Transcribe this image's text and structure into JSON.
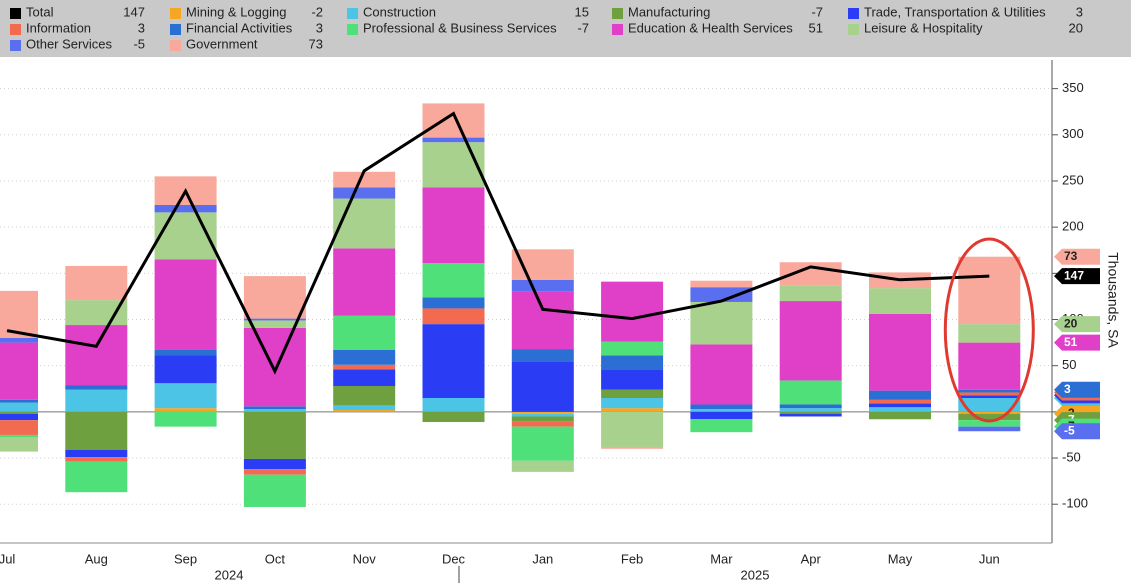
{
  "chart_data": {
    "type": "bar",
    "stacked": true,
    "categories": [
      "Jul",
      "Aug",
      "Sep",
      "Oct",
      "Nov",
      "Dec",
      "Jan",
      "Feb",
      "Mar",
      "Apr",
      "May",
      "Jun"
    ],
    "years": [
      "2024",
      "2025"
    ],
    "y_label": "Thousands, SA",
    "ylim": [
      -142,
      381
    ],
    "yticks": [
      -100,
      -50,
      0,
      50,
      100,
      150,
      200,
      250,
      300,
      350
    ],
    "grid": true,
    "series": [
      {
        "name": "Total",
        "color": "#000000",
        "kind": "line",
        "values": [
          88,
          71,
          239,
          44,
          261,
          323,
          111,
          101,
          120,
          157,
          143,
          147
        ]
      },
      {
        "name": "Mining & Logging",
        "color": "#f5a623",
        "values": [
          0,
          0,
          4,
          0,
          2,
          0,
          -2,
          4,
          0,
          0,
          0,
          -2
        ]
      },
      {
        "name": "Construction",
        "color": "#4cc4e6",
        "values": [
          10,
          24,
          27,
          3,
          5,
          15,
          -3,
          11,
          3,
          4,
          5,
          15
        ]
      },
      {
        "name": "Manufacturing",
        "color": "#6fa040",
        "values": [
          -2,
          -41,
          0,
          -51,
          21,
          -11,
          -5,
          9,
          0,
          -2,
          -8,
          -7
        ]
      },
      {
        "name": "Trade, Transportation & Utilities",
        "color": "#2a3df5",
        "values": [
          -7,
          -8,
          30,
          -11,
          18,
          80,
          54,
          22,
          -8,
          -3,
          4,
          3
        ]
      },
      {
        "name": "Information",
        "color": "#f26a4f",
        "values": [
          -16,
          -5,
          0,
          -6,
          5,
          17,
          -6,
          0,
          0,
          0,
          4,
          3
        ]
      },
      {
        "name": "Financial Activities",
        "color": "#2c6fd4",
        "values": [
          3,
          5,
          6,
          3,
          16,
          12,
          14,
          15,
          5,
          4,
          10,
          3
        ]
      },
      {
        "name": "Professional & Business Services",
        "color": "#4fe07a",
        "values": [
          -3,
          -33,
          -16,
          -35,
          37,
          37,
          -37,
          15,
          -14,
          26,
          0,
          -7
        ]
      },
      {
        "name": "Education & Health Services",
        "color": "#e040c8",
        "values": [
          62,
          65,
          98,
          85,
          73,
          82,
          62,
          65,
          65,
          86,
          83,
          51
        ]
      },
      {
        "name": "Leisure & Hospitality",
        "color": "#a9d18e",
        "values": [
          -15,
          27,
          51,
          8,
          54,
          49,
          -12,
          -38,
          46,
          17,
          28,
          20
        ]
      },
      {
        "name": "Other Services",
        "color": "#5a6ff0",
        "values": [
          5,
          0,
          8,
          2,
          12,
          5,
          13,
          0,
          16,
          0,
          0,
          -5
        ]
      },
      {
        "name": "Government",
        "color": "#f8a99b",
        "values": [
          51,
          37,
          31,
          46,
          17,
          37,
          33,
          -2,
          7,
          25,
          17,
          73
        ]
      }
    ]
  }
}
